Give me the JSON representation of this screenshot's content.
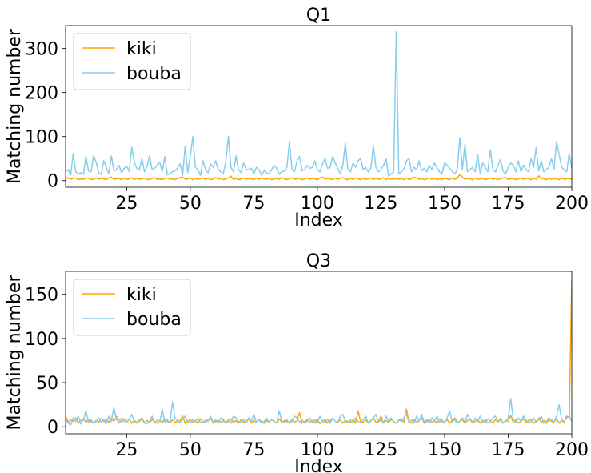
{
  "colors": {
    "kiki": "#FFA500",
    "bouba": "#87CEEB"
  },
  "chart_data": [
    {
      "type": "line",
      "title": "Q1",
      "xlabel": "Index",
      "ylabel": "Matching number",
      "xlim": [
        1,
        200
      ],
      "ylim": [
        -15,
        352
      ],
      "xticks": [
        25,
        50,
        75,
        100,
        125,
        150,
        175,
        200
      ],
      "yticks": [
        0,
        100,
        200,
        300
      ],
      "legend": "top-left",
      "series": [
        {
          "name": "kiki",
          "color_key": "kiki",
          "values": [
            4,
            7,
            3,
            5,
            6,
            2,
            4,
            3,
            6,
            5,
            3,
            2,
            7,
            3,
            5,
            4,
            2,
            6,
            8,
            3,
            4,
            5,
            2,
            6,
            3,
            4,
            7,
            2,
            5,
            3,
            4,
            6,
            2,
            3,
            5,
            7,
            3,
            4,
            2,
            5,
            6,
            3,
            4,
            2,
            5,
            7,
            8,
            3,
            4,
            6,
            2,
            5,
            3,
            4,
            6,
            3,
            5,
            2,
            4,
            7,
            3,
            5,
            2,
            4,
            6,
            10,
            3,
            5,
            2,
            4,
            6,
            3,
            5,
            4,
            2,
            6,
            3,
            5,
            4,
            3,
            6,
            2,
            4,
            5,
            3,
            7,
            4,
            2,
            5,
            6,
            3,
            4,
            5,
            2,
            4,
            6,
            3,
            5,
            4,
            2,
            6,
            8,
            3,
            5,
            4,
            2,
            6,
            3,
            5,
            7,
            4,
            2,
            5,
            3,
            6,
            4,
            2,
            5,
            3,
            4,
            6,
            2,
            5,
            3,
            4,
            7,
            2,
            5,
            3,
            4,
            4,
            3,
            5,
            2,
            6,
            3,
            4,
            8,
            6,
            3,
            5,
            2,
            4,
            6,
            3,
            5,
            2,
            4,
            3,
            5,
            4,
            2,
            6,
            3,
            5,
            14,
            8,
            3,
            5,
            4,
            2,
            6,
            3,
            4,
            5,
            2,
            4,
            6,
            3,
            5,
            2,
            4,
            6,
            7,
            3,
            4,
            5,
            2,
            4,
            6,
            3,
            5,
            4,
            2,
            6,
            3,
            11,
            5,
            4,
            2,
            6,
            3,
            5,
            4,
            2,
            6,
            3,
            4,
            5,
            3
          ]
        },
        {
          "name": "bouba",
          "color_key": "bouba",
          "values": [
            20,
            25,
            12,
            62,
            20,
            15,
            18,
            14,
            55,
            22,
            20,
            56,
            42,
            18,
            14,
            45,
            30,
            16,
            56,
            22,
            25,
            35,
            18,
            28,
            33,
            21,
            76,
            42,
            28,
            24,
            50,
            20,
            31,
            57,
            25,
            28,
            35,
            42,
            20,
            55,
            13,
            15,
            20,
            22,
            28,
            38,
            12,
            78,
            18,
            55,
            100,
            30,
            25,
            12,
            45,
            25,
            18,
            38,
            30,
            45,
            25,
            20,
            15,
            45,
            100,
            30,
            20,
            56,
            25,
            18,
            40,
            25,
            25,
            28,
            15,
            30,
            25,
            12,
            22,
            18,
            15,
            25,
            35,
            28,
            15,
            20,
            22,
            30,
            88,
            25,
            20,
            45,
            55,
            22,
            25,
            35,
            28,
            30,
            45,
            25,
            20,
            38,
            50,
            28,
            30,
            55,
            40,
            28,
            15,
            35,
            85,
            25,
            20,
            40,
            30,
            45,
            50,
            25,
            30,
            20,
            28,
            80,
            30,
            20,
            25,
            35,
            50,
            10,
            15,
            20,
            338,
            15,
            20,
            25,
            45,
            50,
            20,
            30,
            25,
            45,
            22,
            28,
            20,
            35,
            25,
            40,
            30,
            20,
            15,
            40,
            35,
            28,
            20,
            15,
            25,
            98,
            25,
            82,
            20,
            25,
            30,
            20,
            60,
            15,
            40,
            30,
            20,
            70,
            25,
            20,
            35,
            48,
            22,
            15,
            30,
            40,
            35,
            20,
            45,
            20,
            35,
            25,
            20,
            50,
            30,
            75,
            22,
            45,
            20,
            25,
            30,
            50,
            25,
            88,
            60,
            30,
            25,
            20,
            62,
            28,
            15,
            25,
            40,
            50
          ]
        }
      ]
    },
    {
      "type": "line",
      "title": "Q3",
      "xlabel": "Index",
      "ylabel": "Matching number",
      "xlim": [
        1,
        200
      ],
      "ylim": [
        -8,
        176
      ],
      "xticks": [
        25,
        50,
        75,
        100,
        125,
        150,
        175,
        200
      ],
      "yticks": [
        0,
        50,
        100,
        150
      ],
      "legend": "top-left",
      "series": [
        {
          "name": "kiki",
          "color_key": "kiki",
          "values": [
            12,
            5,
            8,
            6,
            10,
            4,
            7,
            9,
            5,
            8,
            6,
            4,
            7,
            5,
            9,
            6,
            8,
            5,
            10,
            6,
            12,
            8,
            5,
            9,
            6,
            8,
            4,
            7,
            5,
            6,
            9,
            4,
            7,
            5,
            8,
            6,
            4,
            7,
            5,
            9,
            6,
            4,
            8,
            5,
            6,
            7,
            12,
            4,
            6,
            8,
            5,
            7,
            4,
            9,
            6,
            5,
            8,
            10,
            4,
            6,
            7,
            5,
            8,
            4,
            6,
            9,
            5,
            7,
            4,
            8,
            5,
            6,
            9,
            4,
            7,
            5,
            8,
            6,
            4,
            7,
            5,
            8,
            6,
            4,
            9,
            5,
            7,
            6,
            4,
            8,
            5,
            7,
            16,
            4,
            6,
            8,
            5,
            7,
            4,
            9,
            3,
            6,
            8,
            4,
            7,
            10,
            6,
            5,
            8,
            4,
            7,
            6,
            5,
            8,
            4,
            18,
            6,
            5,
            8,
            4,
            7,
            10,
            5,
            6,
            12,
            4,
            7,
            5,
            8,
            6,
            4,
            7,
            9,
            5,
            20,
            6,
            4,
            8,
            5,
            7,
            10,
            4,
            6,
            8,
            5,
            7,
            4,
            9,
            6,
            5,
            8,
            4,
            7,
            10,
            5,
            6,
            8,
            4,
            7,
            9,
            5,
            6,
            8,
            4,
            7,
            5,
            9,
            6,
            4,
            8,
            5,
            10,
            4,
            7,
            6,
            13,
            5,
            8,
            4,
            6,
            9,
            5,
            7,
            8,
            4,
            6,
            10,
            5,
            7,
            4,
            8,
            6,
            5,
            9,
            4,
            7,
            5,
            12,
            10,
            167,
            6
          ]
        },
        {
          "name": "bouba",
          "color_key": "bouba",
          "values": [
            8,
            4,
            2,
            10,
            6,
            12,
            3,
            8,
            18,
            5,
            8,
            4,
            6,
            10,
            5,
            8,
            3,
            12,
            6,
            22,
            8,
            4,
            10,
            6,
            5,
            8,
            14,
            6,
            4,
            8,
            10,
            5,
            3,
            6,
            12,
            4,
            8,
            6,
            20,
            5,
            8,
            4,
            28,
            10,
            6,
            5,
            8,
            12,
            6,
            4,
            8,
            6,
            10,
            5,
            4,
            8,
            6,
            12,
            5,
            8,
            4,
            10,
            6,
            5,
            8,
            4,
            12,
            10,
            6,
            5,
            8,
            4,
            10,
            6,
            14,
            5,
            8,
            4,
            6,
            10,
            5,
            8,
            6,
            4,
            18,
            6,
            5,
            8,
            4,
            6,
            12,
            10,
            5,
            8,
            4,
            6,
            10,
            5,
            8,
            4,
            12,
            6,
            5,
            8,
            4,
            10,
            6,
            5,
            12,
            14,
            6,
            5,
            8,
            4,
            10,
            6,
            5,
            8,
            12,
            4,
            6,
            10,
            14,
            5,
            8,
            4,
            12,
            6,
            10,
            5,
            4,
            8,
            6,
            10,
            14,
            5,
            8,
            4,
            12,
            6,
            14,
            5,
            8,
            4,
            10,
            6,
            12,
            5,
            8,
            4,
            10,
            18,
            5,
            8,
            4,
            6,
            10,
            5,
            14,
            8,
            4,
            10,
            6,
            12,
            5,
            8,
            4,
            6,
            10,
            12,
            5,
            8,
            4,
            6,
            10,
            32,
            8,
            5,
            10,
            6,
            12,
            8,
            4,
            6,
            10,
            5,
            8,
            12,
            4,
            6,
            10,
            8,
            5,
            12,
            25,
            8,
            6,
            10,
            12,
            6
          ]
        }
      ]
    }
  ]
}
